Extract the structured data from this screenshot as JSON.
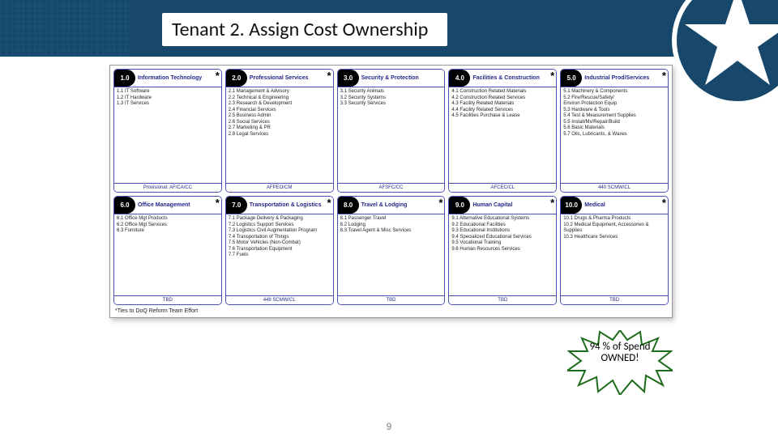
{
  "title": "Tenant 2. Assign Cost Ownership",
  "page_number": "9",
  "footnote": "*Ties to DoQ Reform Team Effort",
  "burst_text": "94 % of Spend OWNED!",
  "burst_fill": "#ffffff",
  "burst_stroke": "#1e6b1b",
  "header_bg": "#17486b",
  "card_border": "#4a4fb8",
  "rows": [
    [
      {
        "num": "1.0",
        "title": "Information Technology",
        "star": true,
        "items": "1.1 IT Software\n1.2 IT Hardware\n1.3 IT Services",
        "footer": "Provisional: AF/CA/CC"
      },
      {
        "num": "2.0",
        "title": "Professional Services",
        "star": true,
        "items": "2.1 Management & Advisory\n2.2 Technical & Engineering\n2.3 Research & Development\n2.4 Financial Services\n2.5 Business Admin\n2.6 Social Services\n2.7 Marketing & PR\n2.8 Legal Services",
        "footer": "AFPEO/CM"
      },
      {
        "num": "3.0",
        "title": "Security & Protection",
        "star": false,
        "items": "3.1 Security Animals\n3.2 Security Systems\n3.3 Security Services",
        "footer": "AFSFC/CC"
      },
      {
        "num": "4.0",
        "title": "Facilities & Construction",
        "star": true,
        "items": "4.1 Construction Related Materials\n4.2 Construction Related Services\n4.3 Facility Related Materials\n4.4 Facility Related Services\n4.5 Facilities Purchase & Lease",
        "footer": "AFCEC/CL"
      },
      {
        "num": "5.0",
        "title": "Industrial Prod/Services",
        "star": true,
        "items": "5.1 Machinery & Components\n5.2 Fire/Rescue/Safety/\n       Environ Protection Equip\n5.3 Hardware & Tools\n5.4 Test & Measurement Supplies\n5.5 Install/Mx/Repair/Build\n5.6 Basic Materials\n5.7 Oils, Lubricants, & Waxes",
        "footer": "440 SCMW/CL"
      }
    ],
    [
      {
        "num": "6.0",
        "title": "Office Management",
        "star": true,
        "items": "6.1 Office Mgt Products\n6.2 Office Mgt Services\n6.3 Furniture",
        "footer": "TBD"
      },
      {
        "num": "7.0",
        "title": "Transportation & Logistics",
        "star": true,
        "items": "7.1 Package Delivery & Packaging\n7.2 Logistics Support Services\n7.3 Logistics Civil Augmentation Program\n7.4 Transportation of Things\n7.5 Motor Vehicles (Non-Combat)\n7.6 Transportation Equipment\n7.7 Fuels",
        "footer": "448 SCMW/CL"
      },
      {
        "num": "8.0",
        "title": "Travel & Lodging",
        "star": true,
        "items": "8.1 Passenger Travel\n8.2 Lodging\n8.3 Travel Agent & Misc Services",
        "footer": "TBD"
      },
      {
        "num": "9.0",
        "title": "Human Capital",
        "star": true,
        "items": "9.1 Alternative Educational Systems\n9.2 Educational Facilities\n9.3 Educational Institutions\n9.4 Specialized Educational Services\n9.5 Vocational Training\n9.6 Human Resources Services",
        "footer": "TBD"
      },
      {
        "num": "10.0",
        "title": "Medical",
        "star": true,
        "items": "10.1 Drugs & Pharma Products\n10.2 Medical Equipment, Accessories & Supplies\n10.3 Healthcare Services",
        "footer": "TBD"
      }
    ]
  ]
}
